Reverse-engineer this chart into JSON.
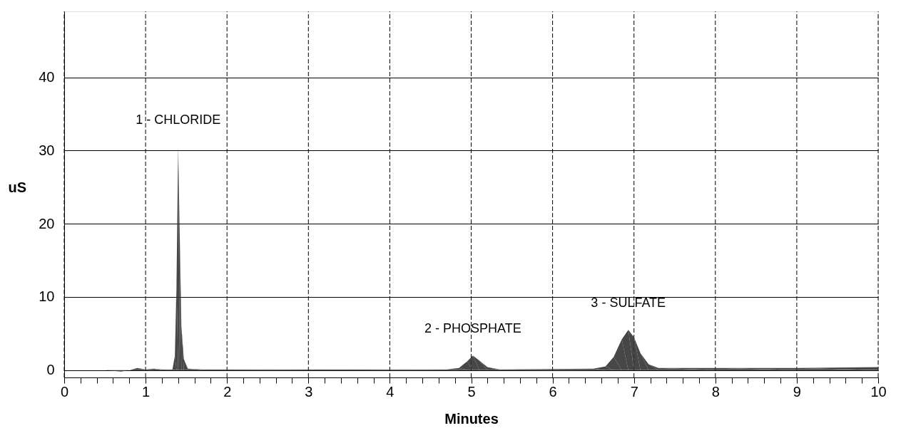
{
  "chart_data": {
    "type": "area",
    "xlabel": "Minutes",
    "ylabel": "uS",
    "x": [
      0,
      0.5,
      0.7,
      0.8,
      0.9,
      1.0,
      1.1,
      1.2,
      1.33,
      1.36,
      1.38,
      1.4,
      1.42,
      1.44,
      1.47,
      1.52,
      1.7,
      3,
      4.7,
      4.85,
      4.95,
      5.02,
      5.1,
      5.2,
      5.35,
      6.5,
      6.65,
      6.75,
      6.85,
      6.93,
      7.0,
      7.08,
      7.18,
      7.3,
      8,
      9,
      10
    ],
    "series": [
      {
        "color": "#333333",
        "values": [
          0.0,
          0.0,
          -0.2,
          0.0,
          0.3,
          0.1,
          0.2,
          0.1,
          0.1,
          2,
          12,
          30.5,
          18,
          6,
          1.5,
          0.2,
          0.1,
          0.1,
          0.1,
          0.3,
          1.2,
          2.0,
          1.3,
          0.4,
          0.1,
          0.2,
          0.5,
          1.8,
          4.2,
          5.5,
          4.5,
          2.3,
          0.8,
          0.3,
          0.3,
          0.3,
          0.4
        ]
      }
    ],
    "xlim": [
      0,
      10
    ],
    "ylim": [
      -1,
      49
    ],
    "xticks": [
      0,
      {
        "value": 0.2,
        "label": null
      },
      {
        "value": 0.4,
        "label": null
      },
      {
        "value": 0.6,
        "label": null
      },
      {
        "value": 0.8,
        "label": null
      },
      1,
      {
        "value": 1.2,
        "label": null
      },
      {
        "value": 1.4,
        "label": null
      },
      {
        "value": 1.6,
        "label": null
      },
      {
        "value": 1.8,
        "label": null
      },
      2,
      {
        "value": 2.2,
        "label": null
      },
      {
        "value": 2.4,
        "label": null
      },
      {
        "value": 2.6,
        "label": null
      },
      {
        "value": 2.8,
        "label": null
      },
      3,
      {
        "value": 3.2,
        "label": null
      },
      {
        "value": 3.4,
        "label": null
      },
      {
        "value": 3.6,
        "label": null
      },
      {
        "value": 3.8,
        "label": null
      },
      4,
      {
        "value": 4.2,
        "label": null
      },
      {
        "value": 4.4,
        "label": null
      },
      {
        "value": 4.6,
        "label": null
      },
      {
        "value": 4.8,
        "label": null
      },
      5,
      {
        "value": 5.2,
        "label": null
      },
      {
        "value": 5.4,
        "label": null
      },
      {
        "value": 5.6,
        "label": null
      },
      {
        "value": 5.8,
        "label": null
      },
      6,
      {
        "value": 6.2,
        "label": null
      },
      {
        "value": 6.4,
        "label": null
      },
      {
        "value": 6.6,
        "label": null
      },
      {
        "value": 6.8,
        "label": null
      },
      7,
      {
        "value": 7.2,
        "label": null
      },
      {
        "value": 7.4,
        "label": null
      },
      {
        "value": 7.6,
        "label": null
      },
      {
        "value": 7.8,
        "label": null
      },
      8,
      {
        "value": 8.2,
        "label": null
      },
      {
        "value": 8.4,
        "label": null
      },
      {
        "value": 8.6,
        "label": null
      },
      {
        "value": 8.8,
        "label": null
      },
      9,
      {
        "value": 9.2,
        "label": null
      },
      {
        "value": 9.4,
        "label": null
      },
      {
        "value": 9.6,
        "label": null
      },
      {
        "value": 9.8,
        "label": null
      },
      10
    ],
    "yticks": [
      0,
      10,
      20,
      30,
      40
    ],
    "grid": true,
    "annotations": [
      {
        "text": "1 - CHLORIDE",
        "x": 1.4,
        "y": 30.5
      },
      {
        "text": "2 - PHOSPHATE",
        "x": 5.02,
        "y": 2.0
      },
      {
        "text": "3 - SULFATE",
        "x": 6.93,
        "y": 5.5
      }
    ]
  }
}
